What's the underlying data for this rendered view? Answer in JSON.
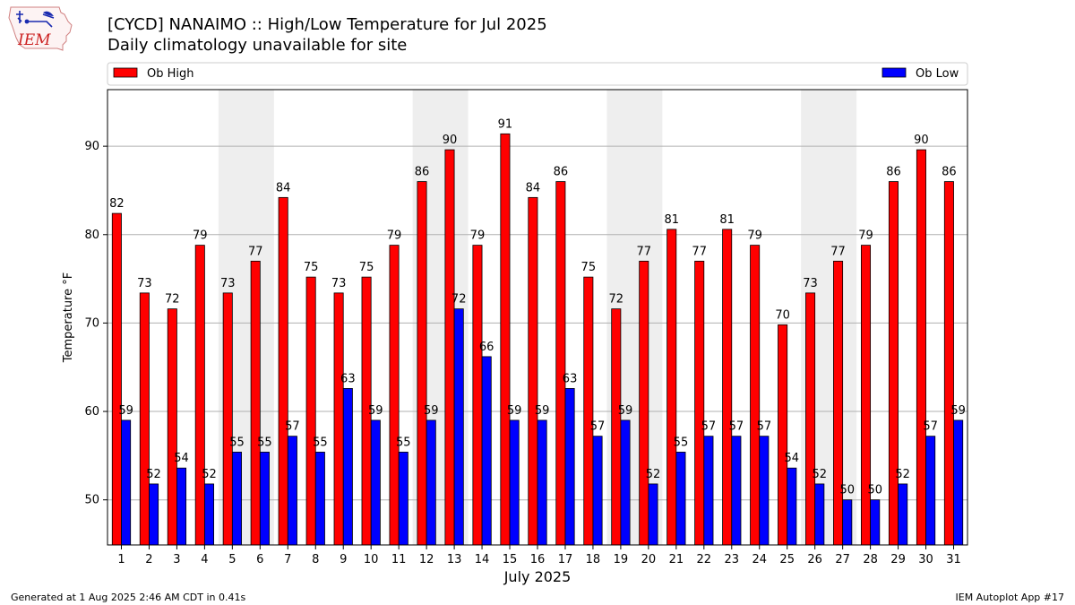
{
  "header": {
    "logo_text": "IEM",
    "title": "[CYCD] NANAIMO :: High/Low Temperature for Jul 2025",
    "subtitle": "Daily climatology unavailable for site"
  },
  "footer": {
    "left": "Generated at 1 Aug 2025 2:46 AM CDT in 0.41s",
    "right": "IEM Autoplot App #17"
  },
  "chart_data": {
    "type": "bar",
    "xlabel": "July 2025",
    "ylabel": "Temperature °F",
    "ylim": [
      44.9,
      96.4
    ],
    "yticks": [
      50,
      60,
      70,
      80,
      90
    ],
    "grid": "horizontal",
    "legend_placement": "top",
    "categories": [
      "1",
      "2",
      "3",
      "4",
      "5",
      "6",
      "7",
      "8",
      "9",
      "10",
      "11",
      "12",
      "13",
      "14",
      "15",
      "16",
      "17",
      "18",
      "19",
      "20",
      "21",
      "22",
      "23",
      "24",
      "25",
      "26",
      "27",
      "28",
      "29",
      "30",
      "31"
    ],
    "weekend_shading": [
      [
        5,
        6
      ],
      [
        12,
        13
      ],
      [
        19,
        20
      ],
      [
        26,
        27
      ]
    ],
    "series": [
      {
        "name": "Ob High",
        "color": "#ff0000",
        "values": [
          82.4,
          73.4,
          71.6,
          78.8,
          73.4,
          77.0,
          84.2,
          75.2,
          73.4,
          75.2,
          78.8,
          86.0,
          89.6,
          78.8,
          91.4,
          84.2,
          86.0,
          75.2,
          71.6,
          77.0,
          80.6,
          77.0,
          80.6,
          78.8,
          69.8,
          73.4,
          77.0,
          78.8,
          86.0,
          89.6,
          86.0
        ],
        "labels": [
          "82",
          "73",
          "72",
          "79",
          "73",
          "77",
          "84",
          "75",
          "73",
          "75",
          "79",
          "86",
          "90",
          "79",
          "91",
          "84",
          "86",
          "75",
          "72",
          "77",
          "81",
          "77",
          "81",
          "79",
          "70",
          "73",
          "77",
          "79",
          "86",
          "90",
          "86"
        ]
      },
      {
        "name": "Ob Low",
        "color": "#0000ff",
        "values": [
          59.0,
          51.8,
          53.6,
          51.8,
          55.4,
          55.4,
          57.2,
          55.4,
          62.6,
          59.0,
          55.4,
          59.0,
          71.6,
          66.2,
          59.0,
          59.0,
          62.6,
          57.2,
          59.0,
          51.8,
          55.4,
          57.2,
          57.2,
          57.2,
          53.6,
          51.8,
          50.0,
          50.0,
          51.8,
          57.2,
          59.0
        ],
        "labels": [
          "59",
          "52",
          "54",
          "52",
          "55",
          "55",
          "57",
          "55",
          "63",
          "59",
          "55",
          "59",
          "72",
          "66",
          "59",
          "59",
          "63",
          "57",
          "59",
          "52",
          "55",
          "57",
          "57",
          "57",
          "54",
          "52",
          "50",
          "50",
          "52",
          "57",
          "59"
        ]
      }
    ]
  }
}
